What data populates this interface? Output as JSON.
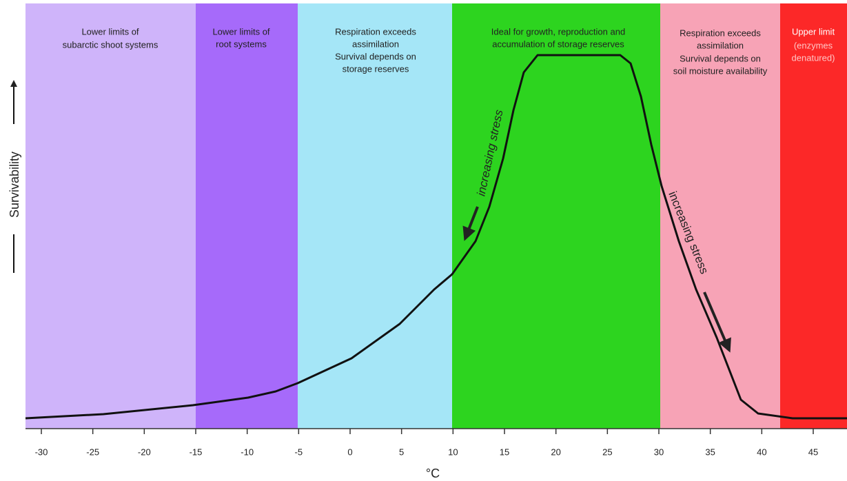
{
  "bands": [
    {
      "lines": [
        "Lower limits of",
        "subarctic shoot systems"
      ]
    },
    {
      "lines": [
        "Lower limits of",
        "root systems"
      ]
    },
    {
      "lines": [
        "Respiration exceeds",
        "assimilation",
        "Survival depends on",
        "storage reserves"
      ]
    },
    {
      "lines": [
        "Ideal for growth, reproduction and",
        "accumulation of storage reserves"
      ]
    },
    {
      "lines": [
        "Respiration exceeds",
        "assimilation",
        "Survival depends on",
        "soil moisture availability"
      ]
    },
    {
      "lines": [
        "Upper limit",
        "(enzymes",
        "denatured)"
      ]
    }
  ],
  "x_axis": {
    "ticks": [
      -30,
      -25,
      -20,
      -15,
      -10,
      -5,
      0,
      5,
      10,
      15,
      20,
      25,
      30,
      35,
      40,
      45
    ],
    "label": "°C"
  },
  "y_axis_label": "Survivability",
  "annotations": [
    "increasing stress",
    "increasing stress"
  ]
}
